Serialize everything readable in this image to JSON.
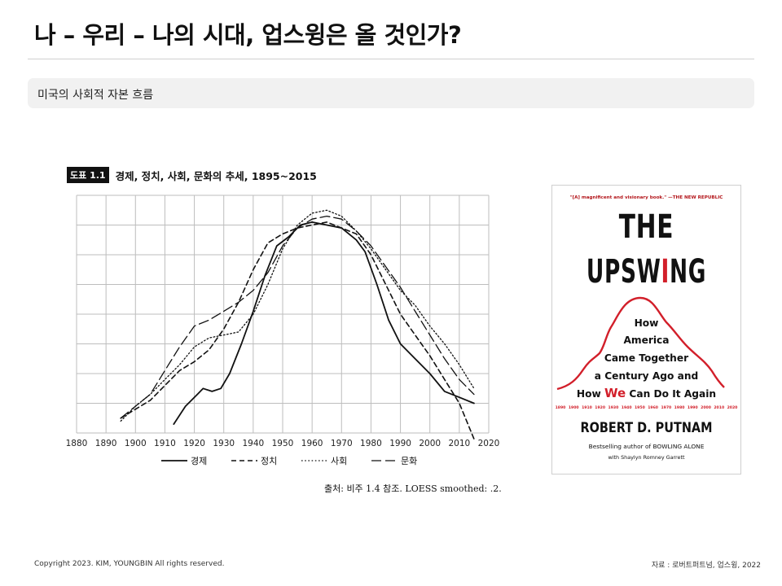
{
  "slide": {
    "title": "나 – 우리 – 나의 시대, 업스윙은 올 것인가?",
    "subtitle": "미국의 사회적 자본 흐름"
  },
  "chart_header": {
    "tag": "도표 1.1",
    "title": "경제, 정치, 사회, 문화의 추세, 1895~2015"
  },
  "chart_data": {
    "type": "line",
    "title": "경제, 정치, 사회, 문화의 추세, 1895~2015",
    "xlabel": "",
    "ylabel": "",
    "xlim": [
      1880,
      2020
    ],
    "ylim": [
      0,
      8
    ],
    "xticks": [
      1880,
      1890,
      1900,
      1910,
      1920,
      1930,
      1940,
      1950,
      1960,
      1970,
      1980,
      1990,
      2000,
      2010,
      2020
    ],
    "grid": true,
    "legend_position": "bottom",
    "series": [
      {
        "name": "경제",
        "style": "solid",
        "color": "#111111",
        "points": [
          [
            1913,
            0.3
          ],
          [
            1917,
            0.9
          ],
          [
            1921,
            1.3
          ],
          [
            1923,
            1.5
          ],
          [
            1926,
            1.4
          ],
          [
            1929,
            1.5
          ],
          [
            1932,
            2.0
          ],
          [
            1936,
            3.0
          ],
          [
            1940,
            4.1
          ],
          [
            1944,
            5.3
          ],
          [
            1948,
            6.3
          ],
          [
            1952,
            6.6
          ],
          [
            1956,
            7.0
          ],
          [
            1960,
            7.1
          ],
          [
            1965,
            7.0
          ],
          [
            1970,
            6.9
          ],
          [
            1975,
            6.5
          ],
          [
            1978,
            6.1
          ],
          [
            1982,
            5.0
          ],
          [
            1986,
            3.8
          ],
          [
            1990,
            3.0
          ],
          [
            1995,
            2.5
          ],
          [
            2000,
            2.0
          ],
          [
            2005,
            1.4
          ],
          [
            2010,
            1.2
          ],
          [
            2015,
            1.0
          ]
        ]
      },
      {
        "name": "정치",
        "style": "dashed",
        "color": "#111111",
        "points": [
          [
            1895,
            0.5
          ],
          [
            1900,
            0.8
          ],
          [
            1905,
            1.1
          ],
          [
            1910,
            1.6
          ],
          [
            1915,
            2.1
          ],
          [
            1920,
            2.4
          ],
          [
            1925,
            2.8
          ],
          [
            1930,
            3.5
          ],
          [
            1935,
            4.4
          ],
          [
            1940,
            5.5
          ],
          [
            1945,
            6.4
          ],
          [
            1950,
            6.7
          ],
          [
            1955,
            6.9
          ],
          [
            1960,
            7.0
          ],
          [
            1965,
            7.1
          ],
          [
            1970,
            6.9
          ],
          [
            1975,
            6.7
          ],
          [
            1980,
            6.0
          ],
          [
            1985,
            5.0
          ],
          [
            1990,
            4.0
          ],
          [
            1995,
            3.3
          ],
          [
            2000,
            2.6
          ],
          [
            2005,
            1.8
          ],
          [
            2010,
            1.0
          ],
          [
            2015,
            -0.2
          ]
        ]
      },
      {
        "name": "사회",
        "style": "dotted",
        "color": "#111111",
        "points": [
          [
            1895,
            0.4
          ],
          [
            1900,
            0.9
          ],
          [
            1905,
            1.3
          ],
          [
            1910,
            1.8
          ],
          [
            1915,
            2.3
          ],
          [
            1920,
            2.9
          ],
          [
            1925,
            3.2
          ],
          [
            1930,
            3.3
          ],
          [
            1935,
            3.4
          ],
          [
            1940,
            4.0
          ],
          [
            1945,
            5.0
          ],
          [
            1950,
            6.2
          ],
          [
            1955,
            7.0
          ],
          [
            1960,
            7.4
          ],
          [
            1965,
            7.5
          ],
          [
            1970,
            7.3
          ],
          [
            1975,
            6.8
          ],
          [
            1980,
            6.2
          ],
          [
            1985,
            5.5
          ],
          [
            1990,
            4.8
          ],
          [
            1995,
            4.3
          ],
          [
            2000,
            3.6
          ],
          [
            2005,
            3.0
          ],
          [
            2010,
            2.3
          ],
          [
            2015,
            1.5
          ]
        ]
      },
      {
        "name": "문화",
        "style": "longdash",
        "color": "#111111",
        "points": [
          [
            1895,
            0.5
          ],
          [
            1900,
            0.9
          ],
          [
            1905,
            1.3
          ],
          [
            1910,
            2.1
          ],
          [
            1915,
            2.9
          ],
          [
            1920,
            3.6
          ],
          [
            1925,
            3.8
          ],
          [
            1930,
            4.1
          ],
          [
            1935,
            4.4
          ],
          [
            1940,
            4.8
          ],
          [
            1945,
            5.4
          ],
          [
            1950,
            6.3
          ],
          [
            1955,
            6.9
          ],
          [
            1960,
            7.2
          ],
          [
            1965,
            7.3
          ],
          [
            1970,
            7.2
          ],
          [
            1975,
            6.8
          ],
          [
            1980,
            6.3
          ],
          [
            1985,
            5.6
          ],
          [
            1990,
            4.9
          ],
          [
            1995,
            4.1
          ],
          [
            2000,
            3.3
          ],
          [
            2005,
            2.5
          ],
          [
            2010,
            1.8
          ],
          [
            2015,
            1.3
          ]
        ]
      }
    ]
  },
  "source_note": "출처: 비주 1.4 참조. LOESS smoothed: .2.",
  "book_cover": {
    "quote": "\"[A] magnificent and visionary book.\" —THE NEW REPUBLIC",
    "title_line1": "THE",
    "title_line2_pre": "UPSW",
    "title_line2_accent": "I",
    "title_line2_post": "NG",
    "subtitle_lines": [
      "How",
      "America",
      "Came Together",
      "a Century Ago and"
    ],
    "subtitle_last_pre": "How",
    "subtitle_last_accent": "We",
    "subtitle_last_post": "Can Do It Again",
    "year_labels": [
      "1890",
      "1900",
      "1910",
      "1920",
      "1930",
      "1940",
      "1950",
      "1960",
      "1970",
      "1980",
      "1990",
      "2000",
      "2010",
      "2020"
    ],
    "author": "ROBERT D. PUTNAM",
    "tagline": "Bestselling author of BOWLING ALONE",
    "coauthor": "with Shaylyn Romney Garrett",
    "accent_color": "#d21f2a"
  },
  "footer": {
    "copyright": "Copyright 2023. KIM, YOUNGBIN All rights reserved.",
    "source": "자료 : 로버트퍼트넘, 업스윙, 2022"
  }
}
